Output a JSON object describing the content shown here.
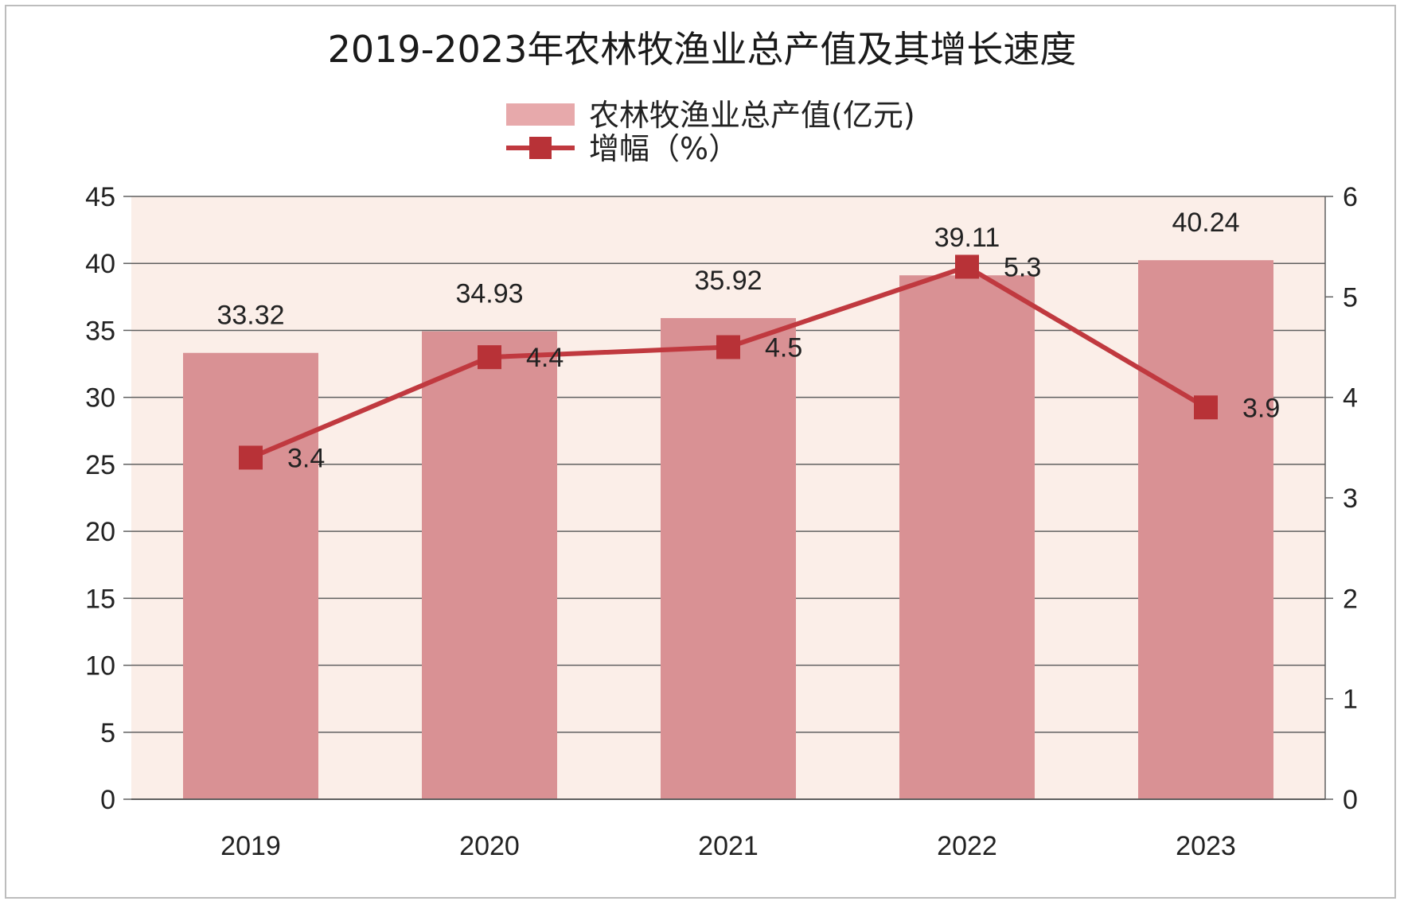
{
  "chart_data": {
    "type": "bar",
    "title": "2019-2023年农林牧渔业总产值及其增长速度",
    "categories": [
      "2019",
      "2020",
      "2021",
      "2022",
      "2023"
    ],
    "series": [
      {
        "name": "农林牧渔业总产值(亿元)",
        "type": "bar",
        "axis": "left",
        "values": [
          33.32,
          34.93,
          35.92,
          39.11,
          40.24
        ],
        "color": "#d99194"
      },
      {
        "name": "增幅（%）",
        "type": "line",
        "axis": "right",
        "marker": "square",
        "values": [
          3.4,
          4.4,
          4.5,
          5.3,
          3.9
        ],
        "color": "#c0393f"
      }
    ],
    "y_left": {
      "min": 0,
      "max": 45,
      "step": 5
    },
    "y_right": {
      "min": 0,
      "max": 6,
      "step": 1
    },
    "grid": true,
    "legend_position": "top-center",
    "plot_background": "#fbeee8"
  }
}
